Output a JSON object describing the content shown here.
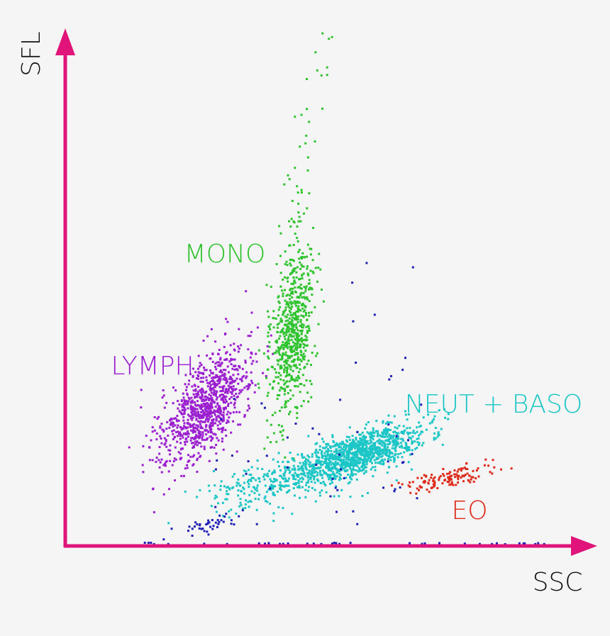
{
  "axes": {
    "x_label": "SSC",
    "y_label": "SFL",
    "color": "#e0147a"
  },
  "clusters": [
    {
      "label": "MONO",
      "color": "#2fc32f"
    },
    {
      "label": "LYMPH",
      "color": "#9b1fd0"
    },
    {
      "label": "NEUT + BASO",
      "color": "#1cc6c6"
    },
    {
      "label": "EO",
      "color": "#dd2a1a"
    }
  ]
}
